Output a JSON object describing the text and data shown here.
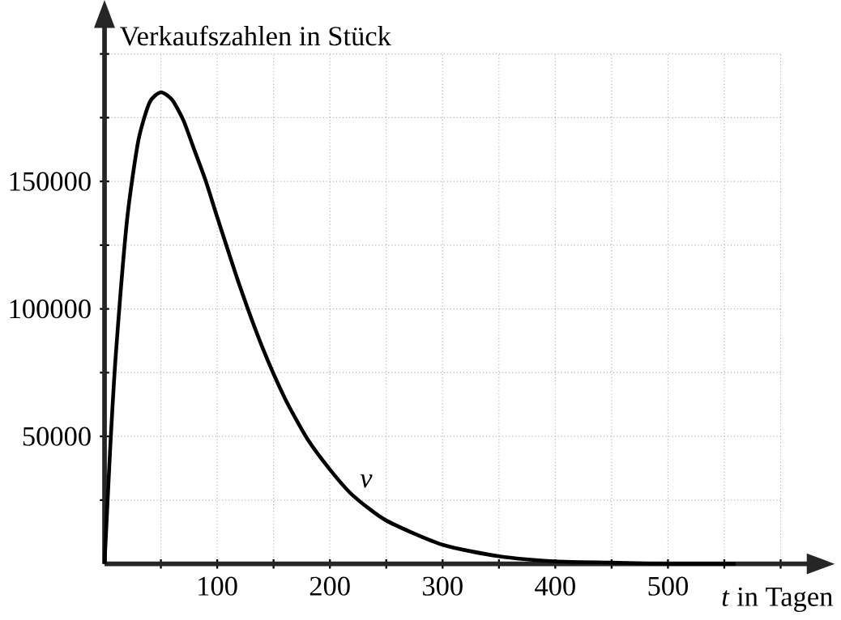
{
  "chart_data": {
    "type": "line",
    "xlabel": "*t* in Tagen",
    "ylabel": "Verkaufszahlen in Stück",
    "annotations": [
      {
        "text": "*v*",
        "x": 220,
        "y": 27000
      }
    ],
    "x": [
      0,
      5,
      10,
      20,
      30,
      40,
      50,
      60,
      70,
      80,
      90,
      100,
      120,
      140,
      160,
      180,
      200,
      220,
      250,
      300,
      350,
      400,
      450,
      500,
      560
    ],
    "series": [
      {
        "color": "#000000",
        "values": [
          0,
          45000,
          82000,
          135000,
          166000,
          181000,
          185000,
          182000,
          174000,
          162000,
          150000,
          136000,
          109000,
          85000,
          65000,
          49000,
          37000,
          27000,
          17000,
          7500,
          3000,
          1000,
          500,
          0,
          0
        ]
      }
    ],
    "xlim": [
      0,
      600
    ],
    "ylim": [
      0,
      200000
    ],
    "xticks": [
      {
        "value": 50,
        "label": null
      },
      100,
      {
        "value": 150,
        "label": null
      },
      200,
      {
        "value": 250,
        "label": null
      },
      300,
      {
        "value": 350,
        "label": null
      },
      400,
      {
        "value": 450,
        "label": null
      },
      500,
      {
        "value": 550,
        "label": null
      },
      {
        "value": 600,
        "label": null
      }
    ],
    "yticks": [
      {
        "value": 25000,
        "label": null
      },
      50000,
      {
        "value": 75000,
        "label": null
      },
      100000,
      {
        "value": 125000,
        "label": null
      },
      150000,
      {
        "value": 175000,
        "label": null
      },
      {
        "value": 200000,
        "label": null
      }
    ],
    "grid": true,
    "marker": "none",
    "line_style": "solid"
  }
}
